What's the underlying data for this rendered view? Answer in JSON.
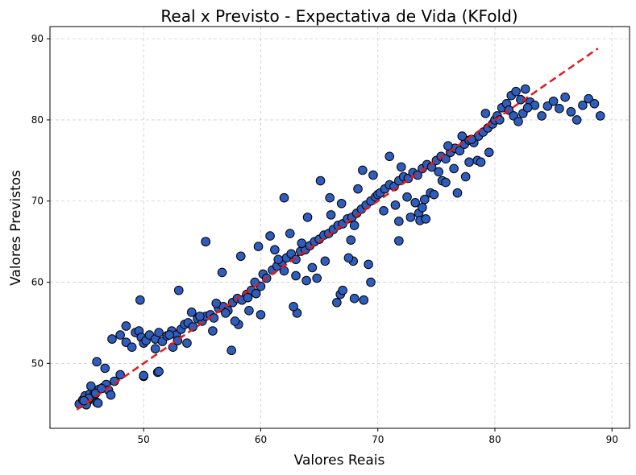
{
  "chart_data": {
    "type": "scatter",
    "title": "Real x Previsto - Expectativa de Vida (KFold)",
    "xlabel": "Valores Reais",
    "ylabel": "Valores Previstos",
    "xlim": [
      42,
      91.5
    ],
    "ylim": [
      42,
      91.5
    ],
    "xticks": [
      50,
      60,
      70,
      80,
      90
    ],
    "yticks": [
      50,
      60,
      70,
      80,
      90
    ],
    "grid": true,
    "point_color": "#2f5dbd",
    "point_edge_color": "#000000",
    "reference_line": {
      "style": "dashed",
      "color": "#e31a1c",
      "x": [
        44.3,
        88.8
      ],
      "y": [
        44.3,
        88.8
      ]
    },
    "series": [
      {
        "x": [
          44.5,
          44.8,
          45.0,
          45.2,
          45.4,
          45.6,
          45.8,
          46.0,
          46.2,
          46.5,
          46.8,
          47.0,
          45.3,
          45.9,
          46.4,
          47.5,
          48.0,
          45.5,
          46.1,
          47.2,
          45.1,
          44.9,
          46.7,
          48.0,
          48.5,
          49.0,
          49.3,
          49.6,
          49.8,
          50.0,
          50.2,
          50.5,
          51.0,
          51.3,
          51.6,
          52.0,
          52.4,
          52.8,
          53.2,
          53.5,
          53.8,
          54.2,
          54.6,
          55.0,
          55.3,
          55.7,
          56.0,
          56.4,
          56.8,
          57.2,
          57.6,
          58.0,
          58.4,
          58.8,
          59.2,
          59.6,
          60.0,
          49.7,
          51.2,
          52.5,
          53.0,
          55.3,
          56.7,
          57.5,
          58.3,
          59.8,
          47.3,
          46.0,
          48.5,
          50.0,
          51.0,
          52.2,
          53.7,
          54.8,
          55.9,
          57.0,
          58.1,
          59.0,
          59.5,
          52.9,
          54.1,
          56.2,
          57.8,
          58.9,
          60.2,
          60.5,
          61.0,
          61.4,
          61.8,
          62.2,
          62.6,
          63.0,
          63.4,
          63.8,
          64.2,
          64.6,
          65.0,
          65.4,
          65.8,
          66.2,
          66.6,
          67.0,
          67.4,
          67.8,
          68.2,
          68.6,
          69.0,
          69.4,
          69.8,
          70.0,
          62.0,
          63.1,
          64.8,
          65.5,
          66.8,
          67.9,
          68.8,
          69.2,
          68.0,
          67.5,
          66.0,
          64.0,
          63.5,
          62.5,
          61.5,
          60.8,
          65.9,
          66.9,
          67.7,
          68.3,
          69.6,
          64.4,
          63.9,
          61.2,
          62.8,
          70.2,
          70.6,
          71.0,
          71.4,
          71.8,
          72.2,
          72.6,
          73.0,
          73.4,
          73.8,
          74.2,
          74.6,
          75.0,
          75.4,
          75.8,
          76.2,
          76.6,
          77.0,
          77.4,
          77.8,
          78.2,
          78.6,
          79.0,
          79.4,
          79.8,
          80.0,
          71.5,
          72.5,
          73.5,
          74.5,
          75.5,
          76.5,
          77.5,
          78.5,
          79.5,
          71.0,
          72.0,
          73.2,
          74.0,
          75.2,
          76.0,
          77.2,
          78.0,
          79.2,
          70.5,
          71.8,
          72.8,
          73.8,
          74.8,
          75.8,
          76.8,
          77.8,
          78.8,
          80.2,
          80.6,
          81.0,
          81.4,
          81.8,
          82.2,
          82.6,
          83.0,
          83.4,
          80.4,
          81.2,
          81.6,
          82.0,
          82.4,
          82.8,
          84.0,
          84.5,
          85.0,
          85.5,
          86.0,
          86.5,
          87.0,
          87.5,
          88.0,
          88.5,
          89.0,
          71.8,
          73.6,
          74.1,
          69.4,
          68.0,
          67.0,
          66.5,
          65.1,
          63.0,
          62.0,
          55.3,
          51.3,
          50.0,
          68.7,
          60.0
        ],
        "y": [
          45.0,
          45.5,
          46.0,
          45.3,
          46.2,
          45.8,
          46.5,
          45.2,
          46.8,
          47.0,
          47.4,
          46.7,
          45.7,
          46.3,
          46.9,
          47.8,
          48.6,
          47.2,
          45.1,
          46.1,
          44.9,
          45.4,
          49.4,
          53.5,
          52.6,
          52.0,
          53.8,
          54.0,
          53.2,
          52.5,
          52.8,
          53.5,
          53.0,
          53.8,
          52.7,
          53.4,
          54.0,
          53.5,
          54.2,
          54.8,
          55.0,
          54.5,
          55.5,
          55.2,
          55.8,
          56.0,
          55.6,
          56.8,
          57.0,
          56.5,
          57.5,
          58.0,
          57.8,
          58.5,
          59.0,
          58.6,
          59.5,
          57.8,
          48.9,
          52.0,
          59.0,
          65.0,
          61.2,
          51.6,
          63.2,
          64.4,
          53.0,
          50.2,
          54.6,
          48.4,
          51.8,
          53.5,
          52.5,
          55.8,
          54.0,
          56.2,
          54.8,
          56.5,
          60.0,
          52.8,
          56.3,
          57.4,
          55.2,
          58.1,
          61.0,
          60.5,
          61.5,
          62.0,
          62.5,
          63.0,
          63.5,
          62.8,
          63.8,
          64.0,
          64.5,
          65.0,
          65.3,
          65.8,
          66.0,
          66.5,
          67.0,
          67.2,
          67.8,
          68.0,
          68.5,
          69.0,
          69.5,
          70.0,
          70.5,
          70.8,
          70.4,
          56.2,
          60.5,
          62.6,
          58.5,
          62.6,
          57.8,
          62.2,
          67.0,
          63.0,
          68.3,
          68.0,
          64.8,
          66.0,
          62.8,
          65.7,
          70.4,
          69.7,
          65.2,
          71.5,
          73.2,
          61.8,
          60.2,
          64.0,
          57.0,
          71.0,
          71.5,
          72.0,
          71.8,
          72.5,
          73.0,
          72.8,
          73.5,
          73.2,
          74.0,
          74.5,
          74.2,
          75.0,
          75.5,
          75.2,
          76.0,
          76.5,
          76.2,
          77.0,
          77.5,
          77.2,
          78.0,
          78.5,
          79.0,
          79.5,
          80.0,
          69.5,
          70.5,
          68.5,
          71.0,
          72.5,
          74.0,
          73.0,
          75.0,
          76.0,
          75.5,
          74.2,
          69.8,
          70.2,
          73.6,
          76.8,
          78.0,
          77.6,
          80.8,
          68.8,
          67.5,
          68.0,
          69.2,
          70.8,
          72.3,
          71.0,
          74.8,
          74.8,
          80.5,
          81.5,
          82.0,
          83.0,
          83.5,
          82.5,
          83.8,
          82.2,
          81.8,
          80.0,
          81.2,
          80.5,
          79.8,
          80.8,
          81.5,
          80.5,
          81.7,
          82.3,
          81.4,
          82.8,
          81.0,
          80.0,
          81.8,
          82.6,
          82.0,
          80.5,
          65.1,
          67.6,
          67.8,
          60.0,
          58.0,
          59.0,
          57.5,
          72.5,
          60.8,
          61.4,
          65.0,
          49.0,
          48.5,
          73.8,
          56.0
        ]
      }
    ]
  }
}
